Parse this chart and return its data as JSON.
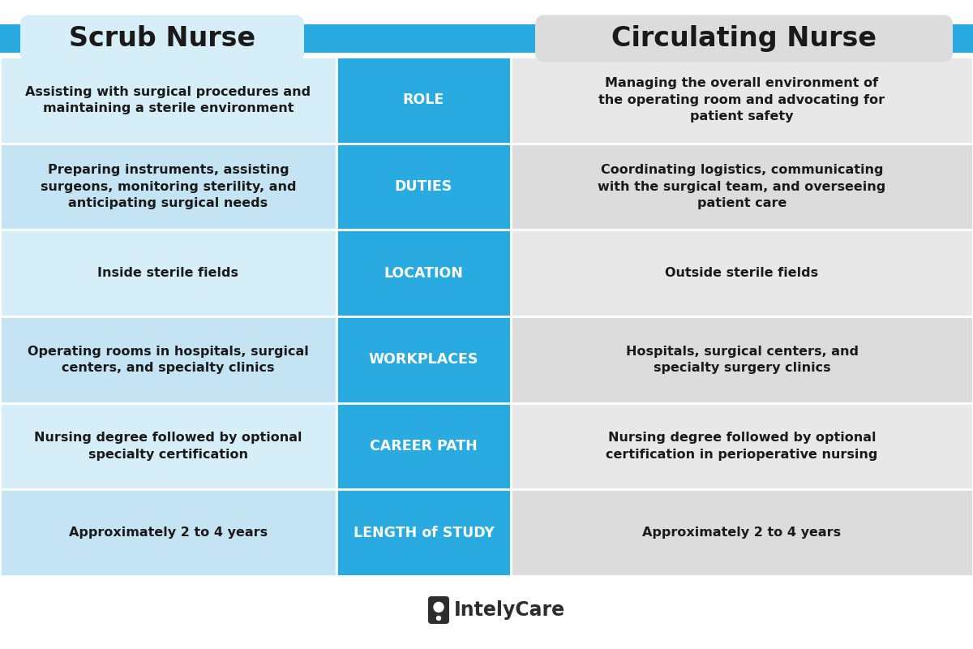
{
  "title_left": "Scrub Nurse",
  "title_right": "Circulating Nurse",
  "header_bar_color": "#29ABE2",
  "center_col_color": "#29ABE2",
  "title_left_box_color": "#D6EEF8",
  "title_right_box_color": "#DCDCDC",
  "center_text_color": "#FFFFFF",
  "left_text_color": "#1A1A1A",
  "right_text_color": "#1A1A1A",
  "left_col_colors": [
    "#D6EEF8",
    "#C5E4F3",
    "#D6EEF8",
    "#C5E4F3",
    "#D6EEF8",
    "#C5E4F3"
  ],
  "right_col_colors": [
    "#E8E8E8",
    "#DCDCDC",
    "#E8E8E8",
    "#DCDCDC",
    "#E8E8E8",
    "#DCDCDC"
  ],
  "rows": [
    {
      "center": "ROLE",
      "left": "Assisting with surgical procedures and\nmaintaining a sterile environment",
      "right": "Managing the overall environment of\nthe operating room and advocating for\npatient safety"
    },
    {
      "center": "DUTIES",
      "left": "Preparing instruments, assisting\nsurgeons, monitoring sterility, and\nanticipating surgical needs",
      "right": "Coordinating logistics, communicating\nwith the surgical team, and overseeing\npatient care"
    },
    {
      "center": "LOCATION",
      "left": "Inside sterile fields",
      "right": "Outside sterile fields"
    },
    {
      "center": "WORKPLACES",
      "left": "Operating rooms in hospitals, surgical\ncenters, and specialty clinics",
      "right": "Hospitals, surgical centers, and\nspecialty surgery clinics"
    },
    {
      "center": "CAREER PATH",
      "left": "Nursing degree followed by optional\nspecialty certification",
      "right": "Nursing degree followed by optional\ncertification in perioperative nursing"
    },
    {
      "center": "LENGTH of STUDY",
      "left": "Approximately 2 to 4 years",
      "right": "Approximately 2 to 4 years"
    }
  ],
  "background_color": "#FFFFFF",
  "logo_text": "IntelyCare",
  "fig_width": 12.0,
  "fig_height": 8.0,
  "dpi": 100
}
